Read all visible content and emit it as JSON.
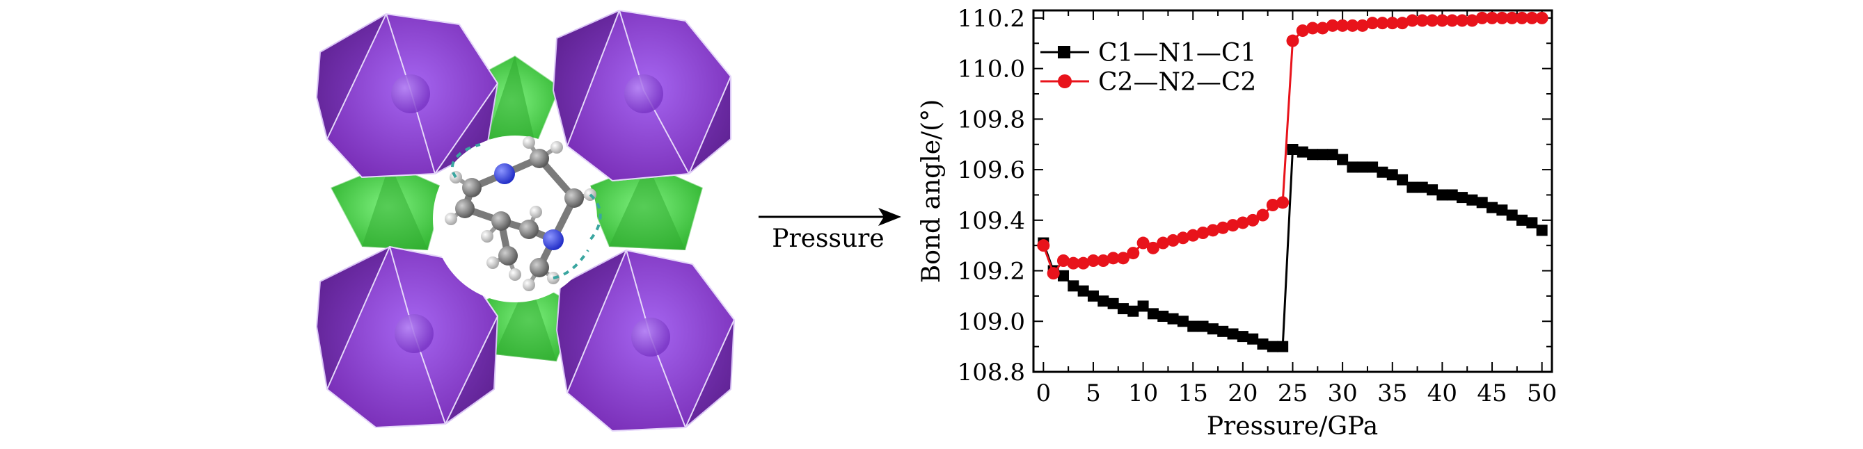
{
  "figure": {
    "arrow_label": "Pressure",
    "left_panel": "crystal-structure-illustration"
  },
  "colors": {
    "series1": "#000000",
    "series2": "#e8131b",
    "octahedron": "#8a3fd0",
    "tetrahedron": "#3fd83f"
  },
  "chart_data": {
    "type": "line",
    "title": "",
    "xlabel": "Pressure/GPa",
    "ylabel": "Bond angle/(°)",
    "xlim": [
      -1,
      51
    ],
    "ylim": [
      108.8,
      110.23
    ],
    "xticks": [
      0,
      5,
      10,
      15,
      20,
      25,
      30,
      35,
      40,
      45,
      50
    ],
    "xtick_labels": [
      "0",
      "5",
      "10",
      "15",
      "20",
      "25",
      "30",
      "35",
      "40",
      "45",
      "50"
    ],
    "yticks": [
      108.8,
      109.0,
      109.2,
      109.4,
      109.6,
      109.8,
      110.0,
      110.2
    ],
    "ytick_labels": [
      "108.8",
      "109.0",
      "109.2",
      "109.4",
      "109.6",
      "109.8",
      "110.0",
      "110.2"
    ],
    "legend_position": "top-left",
    "series": [
      {
        "name": "C1—N1—C1",
        "marker": "square",
        "color": "#000000",
        "x": [
          0,
          1,
          2,
          3,
          4,
          5,
          6,
          7,
          8,
          9,
          10,
          11,
          12,
          13,
          14,
          15,
          16,
          17,
          18,
          19,
          20,
          21,
          22,
          23,
          24,
          25,
          26,
          27,
          28,
          29,
          30,
          31,
          32,
          33,
          34,
          35,
          36,
          37,
          38,
          39,
          40,
          41,
          42,
          43,
          44,
          45,
          46,
          47,
          48,
          49,
          50
        ],
        "values": [
          109.31,
          109.2,
          109.18,
          109.14,
          109.12,
          109.1,
          109.08,
          109.07,
          109.05,
          109.04,
          109.06,
          109.03,
          109.02,
          109.01,
          109.0,
          108.98,
          108.98,
          108.97,
          108.96,
          108.95,
          108.94,
          108.93,
          108.91,
          108.9,
          108.9,
          109.68,
          109.67,
          109.66,
          109.66,
          109.66,
          109.64,
          109.61,
          109.61,
          109.61,
          109.59,
          109.58,
          109.56,
          109.53,
          109.53,
          109.52,
          109.5,
          109.5,
          109.49,
          109.48,
          109.47,
          109.45,
          109.44,
          109.42,
          109.4,
          109.39,
          109.36
        ]
      },
      {
        "name": "C2—N2—C2",
        "marker": "circle",
        "color": "#e8131b",
        "x": [
          0,
          1,
          2,
          3,
          4,
          5,
          6,
          7,
          8,
          9,
          10,
          11,
          12,
          13,
          14,
          15,
          16,
          17,
          18,
          19,
          20,
          21,
          22,
          23,
          24,
          25,
          26,
          27,
          28,
          29,
          30,
          31,
          32,
          33,
          34,
          35,
          36,
          37,
          38,
          39,
          40,
          41,
          42,
          43,
          44,
          45,
          46,
          47,
          48,
          49,
          50
        ],
        "values": [
          109.3,
          109.19,
          109.24,
          109.23,
          109.23,
          109.24,
          109.24,
          109.25,
          109.25,
          109.27,
          109.31,
          109.29,
          109.31,
          109.32,
          109.33,
          109.34,
          109.35,
          109.36,
          109.37,
          109.38,
          109.39,
          109.4,
          109.42,
          109.46,
          109.47,
          110.11,
          110.15,
          110.16,
          110.16,
          110.17,
          110.17,
          110.17,
          110.17,
          110.18,
          110.18,
          110.18,
          110.18,
          110.19,
          110.19,
          110.19,
          110.19,
          110.19,
          110.19,
          110.19,
          110.2,
          110.2,
          110.2,
          110.2,
          110.2,
          110.2,
          110.2
        ]
      }
    ]
  }
}
